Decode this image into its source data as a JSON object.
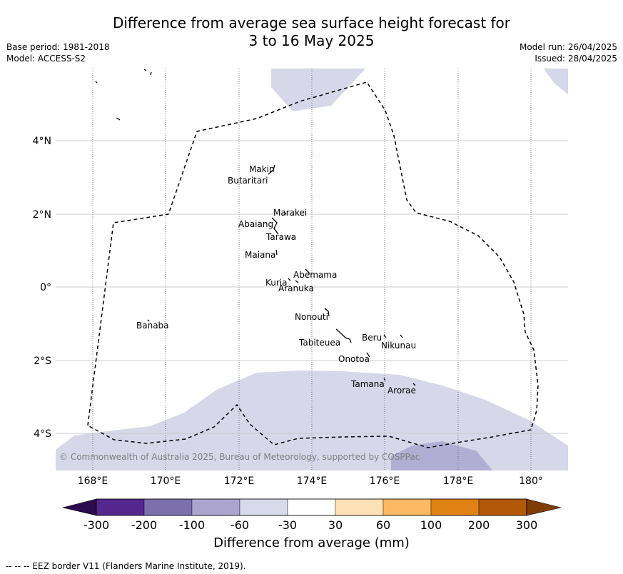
{
  "title": {
    "line1": "Difference from average sea surface height forecast for",
    "line2": "3 to 16 May 2025"
  },
  "meta": {
    "base_period": "Base period: 1981-2018",
    "model": "Model: ACCESS-S2",
    "model_run": "Model run: 26/04/2025",
    "issued": "Issued: 28/04/2025"
  },
  "map": {
    "lon_ticks": [
      "168°E",
      "170°E",
      "172°E",
      "174°E",
      "176°E",
      "178°E",
      "180°"
    ],
    "lat_ticks": [
      "4°N",
      "2°N",
      "0°",
      "2°S",
      "4°S"
    ],
    "islands": [
      "Makin",
      "Butaritari",
      "Marakei",
      "Abaiang",
      "Tarawa",
      "Maiana",
      "Abemama",
      "Kuria",
      "Aranuka",
      "Nonouti",
      "Tabiteuea",
      "Beru",
      "Nikunau",
      "Onotoa",
      "Tamana",
      "Arorae",
      "Banaba"
    ],
    "credit": "© Commonwealth of Australia 2025, Bureau of Meteorology, supported by COSPPac",
    "colors": {
      "light_purple": "#d6d7e9",
      "mid_purple": "#b1aed3",
      "eez_line": "#000000"
    }
  },
  "colorbar": {
    "ticks": [
      "-300",
      "-200",
      "-100",
      "-60",
      "-30",
      "30",
      "60",
      "100",
      "200",
      "300"
    ],
    "colors": [
      "#2d0a4e",
      "#54278f",
      "#7b6fac",
      "#aca6cf",
      "#d8d9ea",
      "#ffffff",
      "#fee0b6",
      "#fdb863",
      "#e08214",
      "#b35806",
      "#7f3b08"
    ],
    "label": "Difference from average (mm)"
  },
  "footer": "-- -- -- EEZ border V11 (Flanders Marine Institute, 2019)."
}
